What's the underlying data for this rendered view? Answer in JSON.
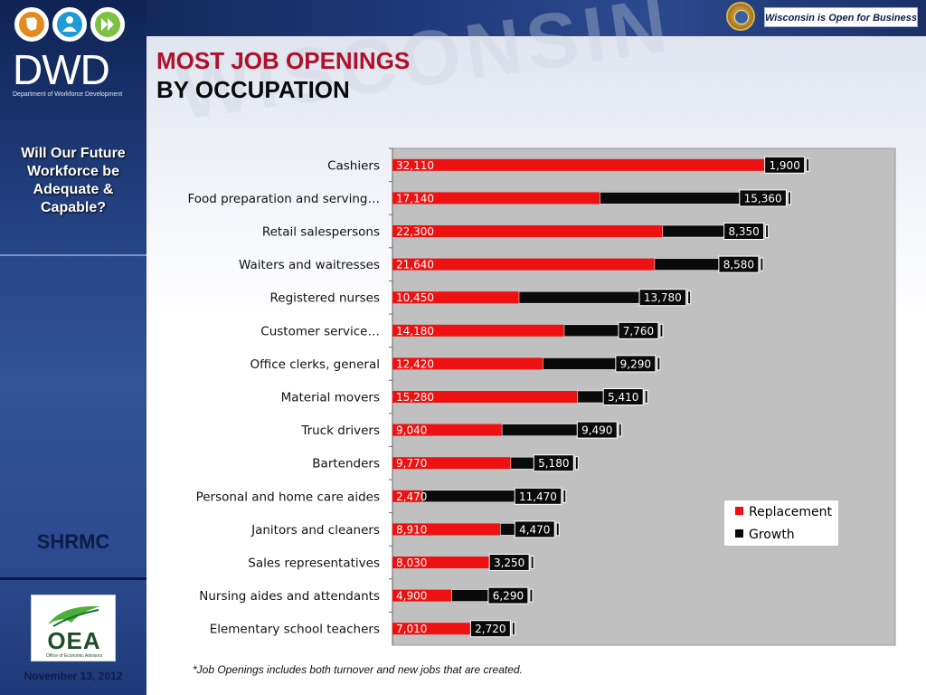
{
  "header": {
    "slogan": "Wisconsin is Open for Business"
  },
  "sidebar": {
    "logo_text": "DWD",
    "logo_subtitle": "Department of Workforce Development",
    "question": "Will Our Future Workforce be Adequate & Capable?",
    "org_label": "SHRMC",
    "oea_logo_text": "OEA",
    "oea_logo_subtitle": "Office of Economic Advisors",
    "date": "November 13, 2012"
  },
  "slide": {
    "title_line_1": "MOST JOB OPENINGS",
    "title_line_2": "BY OCCUPATION",
    "footnote": "*Job Openings includes both turnover and new jobs that are created.",
    "watermark": "WISCONSIN"
  },
  "colors": {
    "replacement": "#ee1111",
    "growth": "#0a0a0a",
    "plot_bg": "#c0c0c0",
    "title_red": "#b0102a"
  },
  "chart_data": {
    "type": "bar",
    "orientation": "horizontal",
    "stacked": true,
    "categories": [
      "Cashiers",
      "Food preparation and serving…",
      "Retail salespersons",
      "Waiters and waitresses",
      "Registered nurses",
      "Customer service…",
      "Office clerks, general",
      "Material movers",
      "Truck drivers",
      "Bartenders",
      "Personal and home care aides",
      "Janitors and cleaners",
      "Sales representatives",
      "Nursing aides and attendants",
      "Elementary school teachers"
    ],
    "series": [
      {
        "name": "Replacement",
        "color": "#ee1111",
        "values": [
          32110,
          17140,
          22300,
          21640,
          10450,
          14180,
          12420,
          15280,
          9040,
          9770,
          2470,
          8910,
          8030,
          4900,
          7010
        ],
        "labels": [
          "32,110",
          "17,140",
          "22,300",
          "21,640",
          "10,450",
          "14,180",
          "12,420",
          "15,280",
          "9,040",
          "9,770",
          "2,470",
          "8,910",
          "8,030",
          "4,900",
          "7,010"
        ]
      },
      {
        "name": "Growth",
        "color": "#0a0a0a",
        "values": [
          1900,
          15360,
          8350,
          8580,
          13780,
          7760,
          9290,
          5410,
          9490,
          5180,
          11470,
          4470,
          3250,
          6290,
          2720
        ],
        "labels": [
          "1,900",
          "15,360",
          "8,350",
          "8,580",
          "13,780",
          "7,760",
          "9,290",
          "5,410",
          "9,490",
          "5,180",
          "11,470",
          "4,470",
          "3,250",
          "6,290",
          "2,720"
        ]
      }
    ],
    "xlim": [
      0,
      41500
    ],
    "grid": false,
    "legend_position": "bottom-right"
  }
}
